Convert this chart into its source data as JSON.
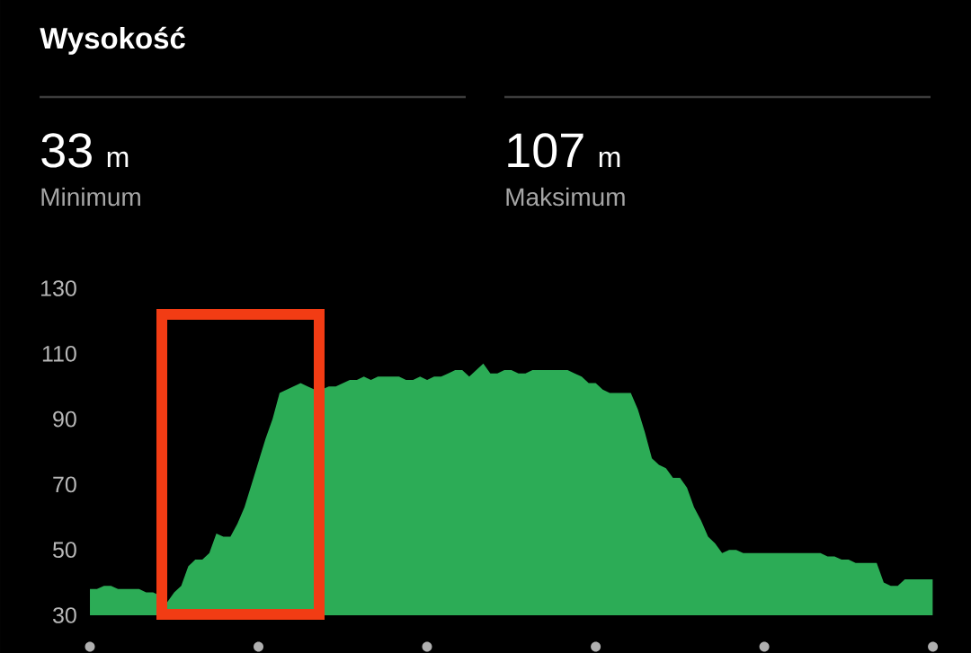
{
  "chart_data": {
    "type": "area",
    "title": "Wysokość",
    "annotations": [
      "33",
      "m",
      "Minimum",
      "107",
      "m",
      "Maksimum"
    ],
    "categories": [
      null,
      null,
      null,
      null,
      null,
      null,
      null,
      null,
      null,
      null,
      null,
      null,
      null,
      null,
      null,
      null,
      null,
      null,
      null,
      null,
      null,
      null,
      null,
      null,
      null,
      null,
      null,
      null,
      null,
      null,
      null,
      null,
      null,
      null,
      null,
      null,
      null,
      null,
      null,
      null,
      null,
      null,
      null,
      null,
      null,
      null,
      null,
      null,
      null,
      null,
      null,
      null,
      null,
      null,
      null,
      null,
      null,
      null,
      null,
      null,
      null,
      null,
      null,
      null,
      null,
      null,
      null,
      null,
      null,
      null,
      null,
      null,
      null,
      null,
      null,
      null,
      null,
      null,
      null,
      null,
      null,
      null,
      null,
      null,
      null,
      null,
      null,
      null,
      null,
      null,
      null,
      null,
      null,
      null,
      null,
      null,
      null,
      null,
      null,
      null,
      null,
      null,
      null,
      null,
      null,
      null,
      null,
      null,
      null,
      null,
      null,
      null,
      null,
      null,
      null,
      null,
      null,
      null,
      null,
      null,
      null
    ],
    "values": [
      38,
      38,
      39,
      39,
      38,
      38,
      38,
      38,
      37,
      37,
      36,
      34,
      37,
      39,
      45,
      47,
      47,
      49,
      55,
      54,
      54,
      58,
      63,
      70,
      77,
      84,
      90,
      98,
      99,
      100,
      101,
      100,
      99,
      99,
      100,
      100,
      101,
      102,
      102,
      103,
      102,
      103,
      103,
      103,
      103,
      102,
      102,
      103,
      102,
      103,
      103,
      104,
      105,
      105,
      103,
      105,
      107,
      104,
      104,
      105,
      105,
      104,
      104,
      105,
      105,
      105,
      105,
      105,
      105,
      104,
      103,
      101,
      101,
      99,
      98,
      98,
      98,
      98,
      93,
      86,
      78,
      76,
      75,
      72,
      72,
      69,
      63,
      59,
      54,
      52,
      49,
      50,
      50,
      49,
      49,
      49,
      49,
      49,
      49,
      49,
      49,
      49,
      49,
      49,
      49,
      48,
      48,
      47,
      47,
      46,
      46,
      46,
      46,
      40,
      39,
      39,
      41,
      41,
      41,
      41,
      41
    ],
    "color": "#2cac56",
    "ylim": [
      30,
      130
    ],
    "yticks": [
      30,
      50,
      70,
      90,
      110,
      130
    ]
  }
}
